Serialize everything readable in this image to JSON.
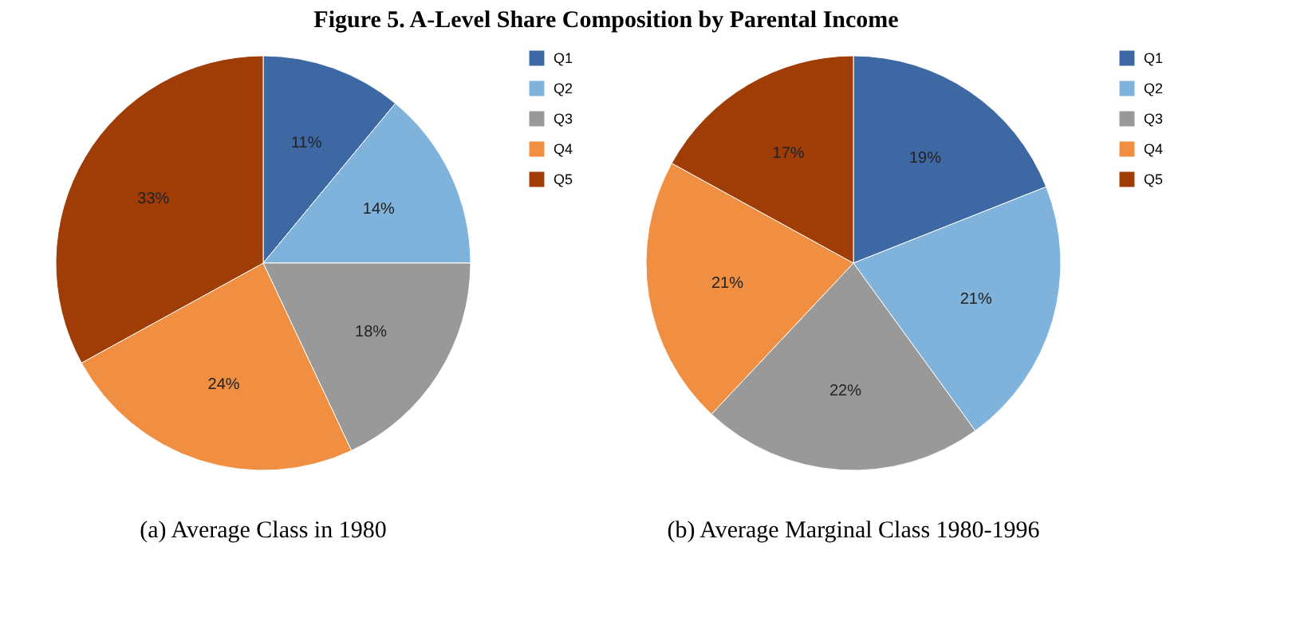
{
  "chart_data": [
    {
      "type": "pie",
      "title": "Figure 5. A-Level Share Composition by Parental Income",
      "xlabel": "(a) Average Class in 1980",
      "categories": [
        "Q1",
        "Q2",
        "Q3",
        "Q4",
        "Q5"
      ],
      "values": [
        11,
        14,
        18,
        24,
        33
      ],
      "value_labels": [
        "11%",
        "14%",
        "18%",
        "24%",
        "33%"
      ],
      "colors": [
        "#3e68a3",
        "#80b3dc",
        "#999999",
        "#f08f41",
        "#a03d07"
      ],
      "legend": "right"
    },
    {
      "type": "pie",
      "xlabel": "(b) Average Marginal Class 1980-1996",
      "categories": [
        "Q1",
        "Q2",
        "Q3",
        "Q4",
        "Q5"
      ],
      "values": [
        19,
        21,
        22,
        21,
        17
      ],
      "value_labels": [
        "19%",
        "21%",
        "22%",
        "21%",
        "17%"
      ],
      "colors": [
        "#3e68a3",
        "#80b3dc",
        "#999999",
        "#f08f41",
        "#a03d07"
      ],
      "legend": "right"
    }
  ]
}
